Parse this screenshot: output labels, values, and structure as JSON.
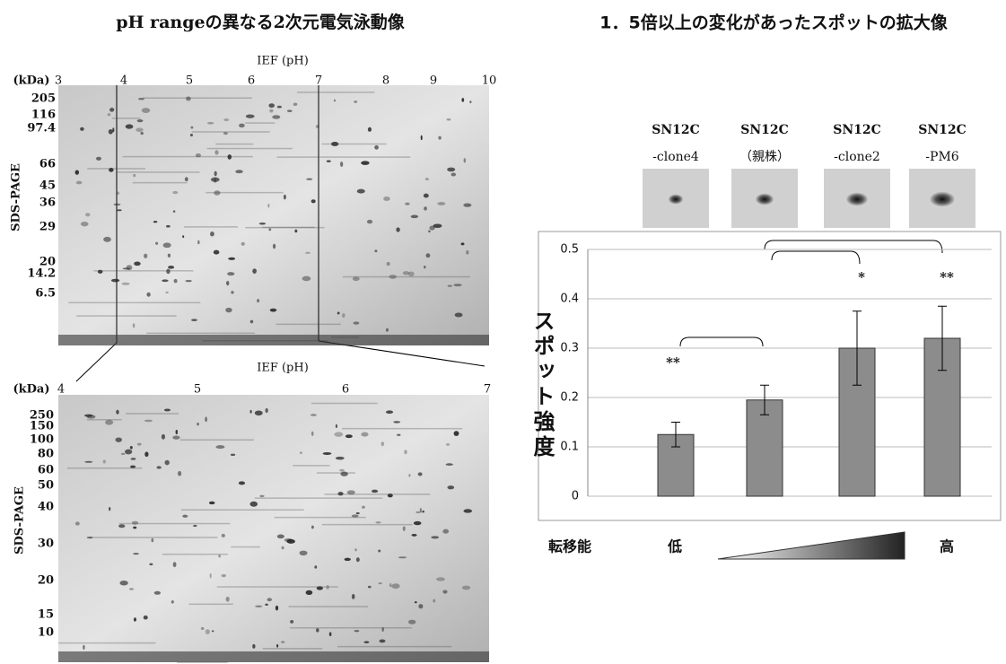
{
  "gel_title": "pH rangeの異なる2次元電気泳動像",
  "gel_top": {
    "x_title": "IEF (pH)",
    "unit": "(kDa)",
    "y_title": "SDS-PAGE",
    "x_labels": [
      3,
      4,
      5,
      6,
      7,
      8,
      9,
      10
    ],
    "y_labels": [
      205,
      116,
      97.4,
      66,
      45,
      36,
      29,
      20,
      14.2,
      6.5
    ]
  },
  "gel_bottom": {
    "x_title": "IEF (pH)",
    "unit": "(kDa)",
    "y_title": "SDS-PAGE",
    "x_labels": [
      4,
      5,
      6,
      7
    ],
    "y_labels": [
      250,
      150,
      100,
      80,
      60,
      50,
      40,
      30,
      20,
      15,
      10
    ]
  },
  "chart_data": {
    "type": "bar",
    "title": "1．5倍以上の変化があったスポットの拡大像",
    "y_label": "スポット強度",
    "categories": [
      [
        "SN12C",
        "-clone4"
      ],
      [
        "SN12C",
        "（親株）"
      ],
      [
        "SN12C",
        "-clone2"
      ],
      [
        "SN12C",
        "-PM6"
      ]
    ],
    "values": [
      0.125,
      0.195,
      0.3,
      0.32
    ],
    "errors": [
      0.025,
      0.03,
      0.075,
      0.065
    ],
    "significance": [
      "**",
      null,
      "*",
      "**"
    ],
    "color": "#8c8c8c",
    "ylim": [
      0,
      0.5
    ],
    "yticks": [
      0,
      0.1,
      0.2,
      0.3,
      0.4,
      0.5
    ],
    "grid": true
  },
  "scale": {
    "label": "転移能",
    "low": "低",
    "high": "高"
  }
}
